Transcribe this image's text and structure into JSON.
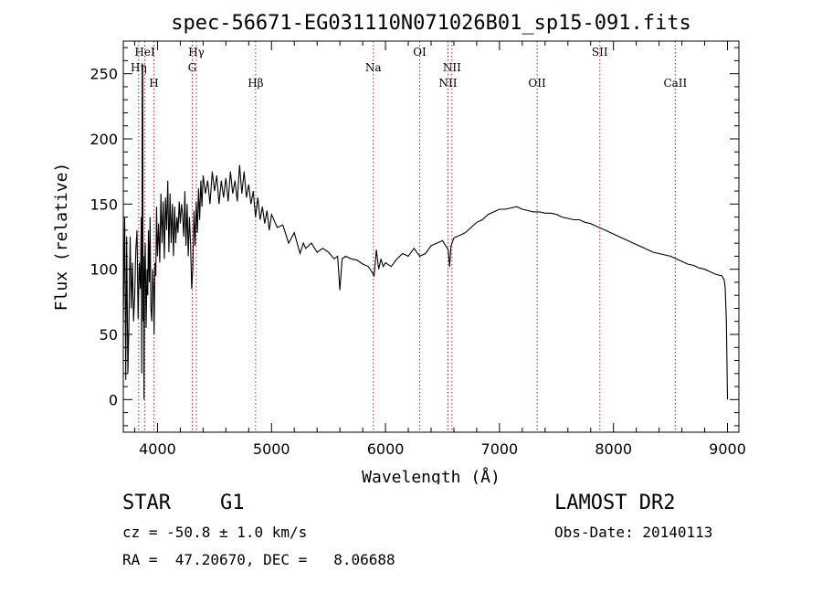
{
  "chart_data": {
    "type": "line",
    "title": "spec-56671-EG031110N071026B01_sp15-091.fits",
    "xlabel": "Wavelength (Å)",
    "ylabel": "Flux (relative)",
    "xlim": [
      3700,
      9100
    ],
    "ylim": [
      -25,
      275
    ],
    "xticks": [
      4000,
      5000,
      6000,
      7000,
      8000,
      9000
    ],
    "yticks": [
      0,
      50,
      100,
      150,
      200,
      250
    ],
    "grid": false,
    "series": [
      {
        "values": [
          [
            3700,
            60
          ],
          [
            3712,
            140
          ],
          [
            3722,
            15
          ],
          [
            3730,
            125
          ],
          [
            3740,
            20
          ],
          [
            3750,
            60
          ],
          [
            3760,
            125
          ],
          [
            3770,
            70
          ],
          [
            3780,
            105
          ],
          [
            3790,
            60
          ],
          [
            3800,
            80
          ],
          [
            3810,
            115
          ],
          [
            3820,
            130
          ],
          [
            3830,
            62
          ],
          [
            3840,
            105
          ],
          [
            3850,
            85
          ],
          [
            3858,
            140
          ],
          [
            3862,
            20
          ],
          [
            3866,
            258
          ],
          [
            3870,
            255
          ],
          [
            3874,
            60
          ],
          [
            3878,
            110
          ],
          [
            3882,
            0
          ],
          [
            3886,
            90
          ],
          [
            3892,
            120
          ],
          [
            3900,
            55
          ],
          [
            3908,
            100
          ],
          [
            3915,
            80
          ],
          [
            3920,
            130
          ],
          [
            3928,
            90
          ],
          [
            3935,
            140
          ],
          [
            3942,
            70
          ],
          [
            3950,
            60
          ],
          [
            3958,
            100
          ],
          [
            3965,
            85
          ],
          [
            3970,
            50
          ],
          [
            3978,
            105
          ],
          [
            3985,
            95
          ],
          [
            3992,
            148
          ],
          [
            4000,
            110
          ],
          [
            4010,
            135
          ],
          [
            4020,
            105
          ],
          [
            4030,
            158
          ],
          [
            4040,
            120
          ],
          [
            4050,
            152
          ],
          [
            4060,
            108
          ],
          [
            4070,
            155
          ],
          [
            4080,
            130
          ],
          [
            4090,
            168
          ],
          [
            4100,
            113
          ],
          [
            4110,
            158
          ],
          [
            4120,
            120
          ],
          [
            4130,
            150
          ],
          [
            4140,
            110
          ],
          [
            4150,
            148
          ],
          [
            4160,
            120
          ],
          [
            4170,
            140
          ],
          [
            4180,
            128
          ],
          [
            4190,
            152
          ],
          [
            4200,
            135
          ],
          [
            4210,
            150
          ],
          [
            4220,
            142
          ],
          [
            4230,
            125
          ],
          [
            4240,
            160
          ],
          [
            4250,
            118
          ],
          [
            4260,
            150
          ],
          [
            4270,
            110
          ],
          [
            4280,
            140
          ],
          [
            4290,
            120
          ],
          [
            4300,
            85
          ],
          [
            4310,
            100
          ],
          [
            4320,
            145
          ],
          [
            4330,
            118
          ],
          [
            4340,
            152
          ],
          [
            4350,
            128
          ],
          [
            4360,
            162
          ],
          [
            4370,
            138
          ],
          [
            4380,
            168
          ],
          [
            4390,
            148
          ],
          [
            4400,
            172
          ],
          [
            4420,
            158
          ],
          [
            4440,
            168
          ],
          [
            4460,
            150
          ],
          [
            4480,
            175
          ],
          [
            4500,
            160
          ],
          [
            4520,
            172
          ],
          [
            4540,
            150
          ],
          [
            4560,
            168
          ],
          [
            4580,
            155
          ],
          [
            4600,
            170
          ],
          [
            4620,
            152
          ],
          [
            4640,
            175
          ],
          [
            4660,
            158
          ],
          [
            4680,
            168
          ],
          [
            4700,
            152
          ],
          [
            4720,
            180
          ],
          [
            4740,
            158
          ],
          [
            4760,
            175
          ],
          [
            4780,
            155
          ],
          [
            4800,
            165
          ],
          [
            4820,
            150
          ],
          [
            4840,
            160
          ],
          [
            4860,
            140
          ],
          [
            4880,
            155
          ],
          [
            4900,
            138
          ],
          [
            4920,
            148
          ],
          [
            4940,
            135
          ],
          [
            4960,
            145
          ],
          [
            4980,
            130
          ],
          [
            5000,
            142
          ],
          [
            5050,
            132
          ],
          [
            5100,
            134
          ],
          [
            5150,
            120
          ],
          [
            5200,
            128
          ],
          [
            5250,
            112
          ],
          [
            5280,
            120
          ],
          [
            5300,
            116
          ],
          [
            5350,
            120
          ],
          [
            5400,
            113
          ],
          [
            5450,
            116
          ],
          [
            5500,
            113
          ],
          [
            5550,
            108
          ],
          [
            5580,
            110
          ],
          [
            5600,
            84
          ],
          [
            5620,
            108
          ],
          [
            5650,
            110
          ],
          [
            5700,
            108
          ],
          [
            5750,
            107
          ],
          [
            5800,
            104
          ],
          [
            5850,
            102
          ],
          [
            5880,
            98
          ],
          [
            5900,
            95
          ],
          [
            5920,
            115
          ],
          [
            5940,
            100
          ],
          [
            5960,
            108
          ],
          [
            5980,
            102
          ],
          [
            6000,
            105
          ],
          [
            6050,
            102
          ],
          [
            6100,
            108
          ],
          [
            6150,
            112
          ],
          [
            6200,
            110
          ],
          [
            6250,
            116
          ],
          [
            6300,
            110
          ],
          [
            6350,
            112
          ],
          [
            6400,
            118
          ],
          [
            6450,
            120
          ],
          [
            6500,
            122
          ],
          [
            6550,
            115
          ],
          [
            6563,
            102
          ],
          [
            6575,
            118
          ],
          [
            6600,
            124
          ],
          [
            6650,
            126
          ],
          [
            6700,
            128
          ],
          [
            6750,
            132
          ],
          [
            6800,
            136
          ],
          [
            6850,
            138
          ],
          [
            6900,
            142
          ],
          [
            6950,
            144
          ],
          [
            7000,
            146
          ],
          [
            7050,
            146
          ],
          [
            7100,
            147
          ],
          [
            7150,
            148
          ],
          [
            7200,
            146
          ],
          [
            7250,
            145
          ],
          [
            7300,
            144
          ],
          [
            7350,
            144
          ],
          [
            7400,
            143
          ],
          [
            7450,
            143
          ],
          [
            7500,
            142
          ],
          [
            7550,
            140
          ],
          [
            7600,
            139
          ],
          [
            7650,
            138
          ],
          [
            7700,
            138
          ],
          [
            7750,
            136
          ],
          [
            7800,
            135
          ],
          [
            7850,
            133
          ],
          [
            7900,
            131
          ],
          [
            7950,
            129
          ],
          [
            8000,
            127
          ],
          [
            8050,
            125
          ],
          [
            8100,
            123
          ],
          [
            8150,
            121
          ],
          [
            8200,
            119
          ],
          [
            8250,
            117
          ],
          [
            8300,
            115
          ],
          [
            8350,
            113
          ],
          [
            8400,
            112
          ],
          [
            8450,
            111
          ],
          [
            8500,
            110
          ],
          [
            8550,
            108
          ],
          [
            8600,
            106
          ],
          [
            8650,
            104
          ],
          [
            8700,
            103
          ],
          [
            8750,
            101
          ],
          [
            8800,
            100
          ],
          [
            8850,
            98
          ],
          [
            8900,
            96
          ],
          [
            8950,
            95
          ],
          [
            8970,
            92
          ],
          [
            8980,
            86
          ],
          [
            8990,
            60
          ],
          [
            9000,
            0
          ]
        ]
      }
    ],
    "lines": [
      {
        "label": "HeI",
        "x": 3889,
        "row": 1
      },
      {
        "label": "Hη",
        "x": 3835,
        "row": 2
      },
      {
        "label": "H",
        "x": 3968,
        "row": 3
      },
      {
        "label": "Hγ",
        "x": 4341,
        "row": 1
      },
      {
        "label": "G",
        "x": 4305,
        "row": 2
      },
      {
        "label": "Hβ",
        "x": 4861,
        "row": 3
      },
      {
        "label": "Na",
        "x": 5893,
        "row": 2
      },
      {
        "label": "OI",
        "x": 6300,
        "row": 1
      },
      {
        "label": "NII",
        "x": 6583,
        "row": 2
      },
      {
        "label": "NII",
        "x": 6548,
        "row": 3
      },
      {
        "label": "OII",
        "x": 7330,
        "row": 3
      },
      {
        "label": "SII",
        "x": 7880,
        "row": 1
      },
      {
        "label": "CaII",
        "x": 8542,
        "row": 3
      }
    ]
  },
  "footer": {
    "object_type": "STAR",
    "subclass": "G1",
    "survey": "LAMOST DR2",
    "redshift": "cz = -50.8 ± 1.0 km/s",
    "obs_date": "Obs-Date: 20140113",
    "coords": "RA =  47.20670, DEC =   8.06688"
  }
}
